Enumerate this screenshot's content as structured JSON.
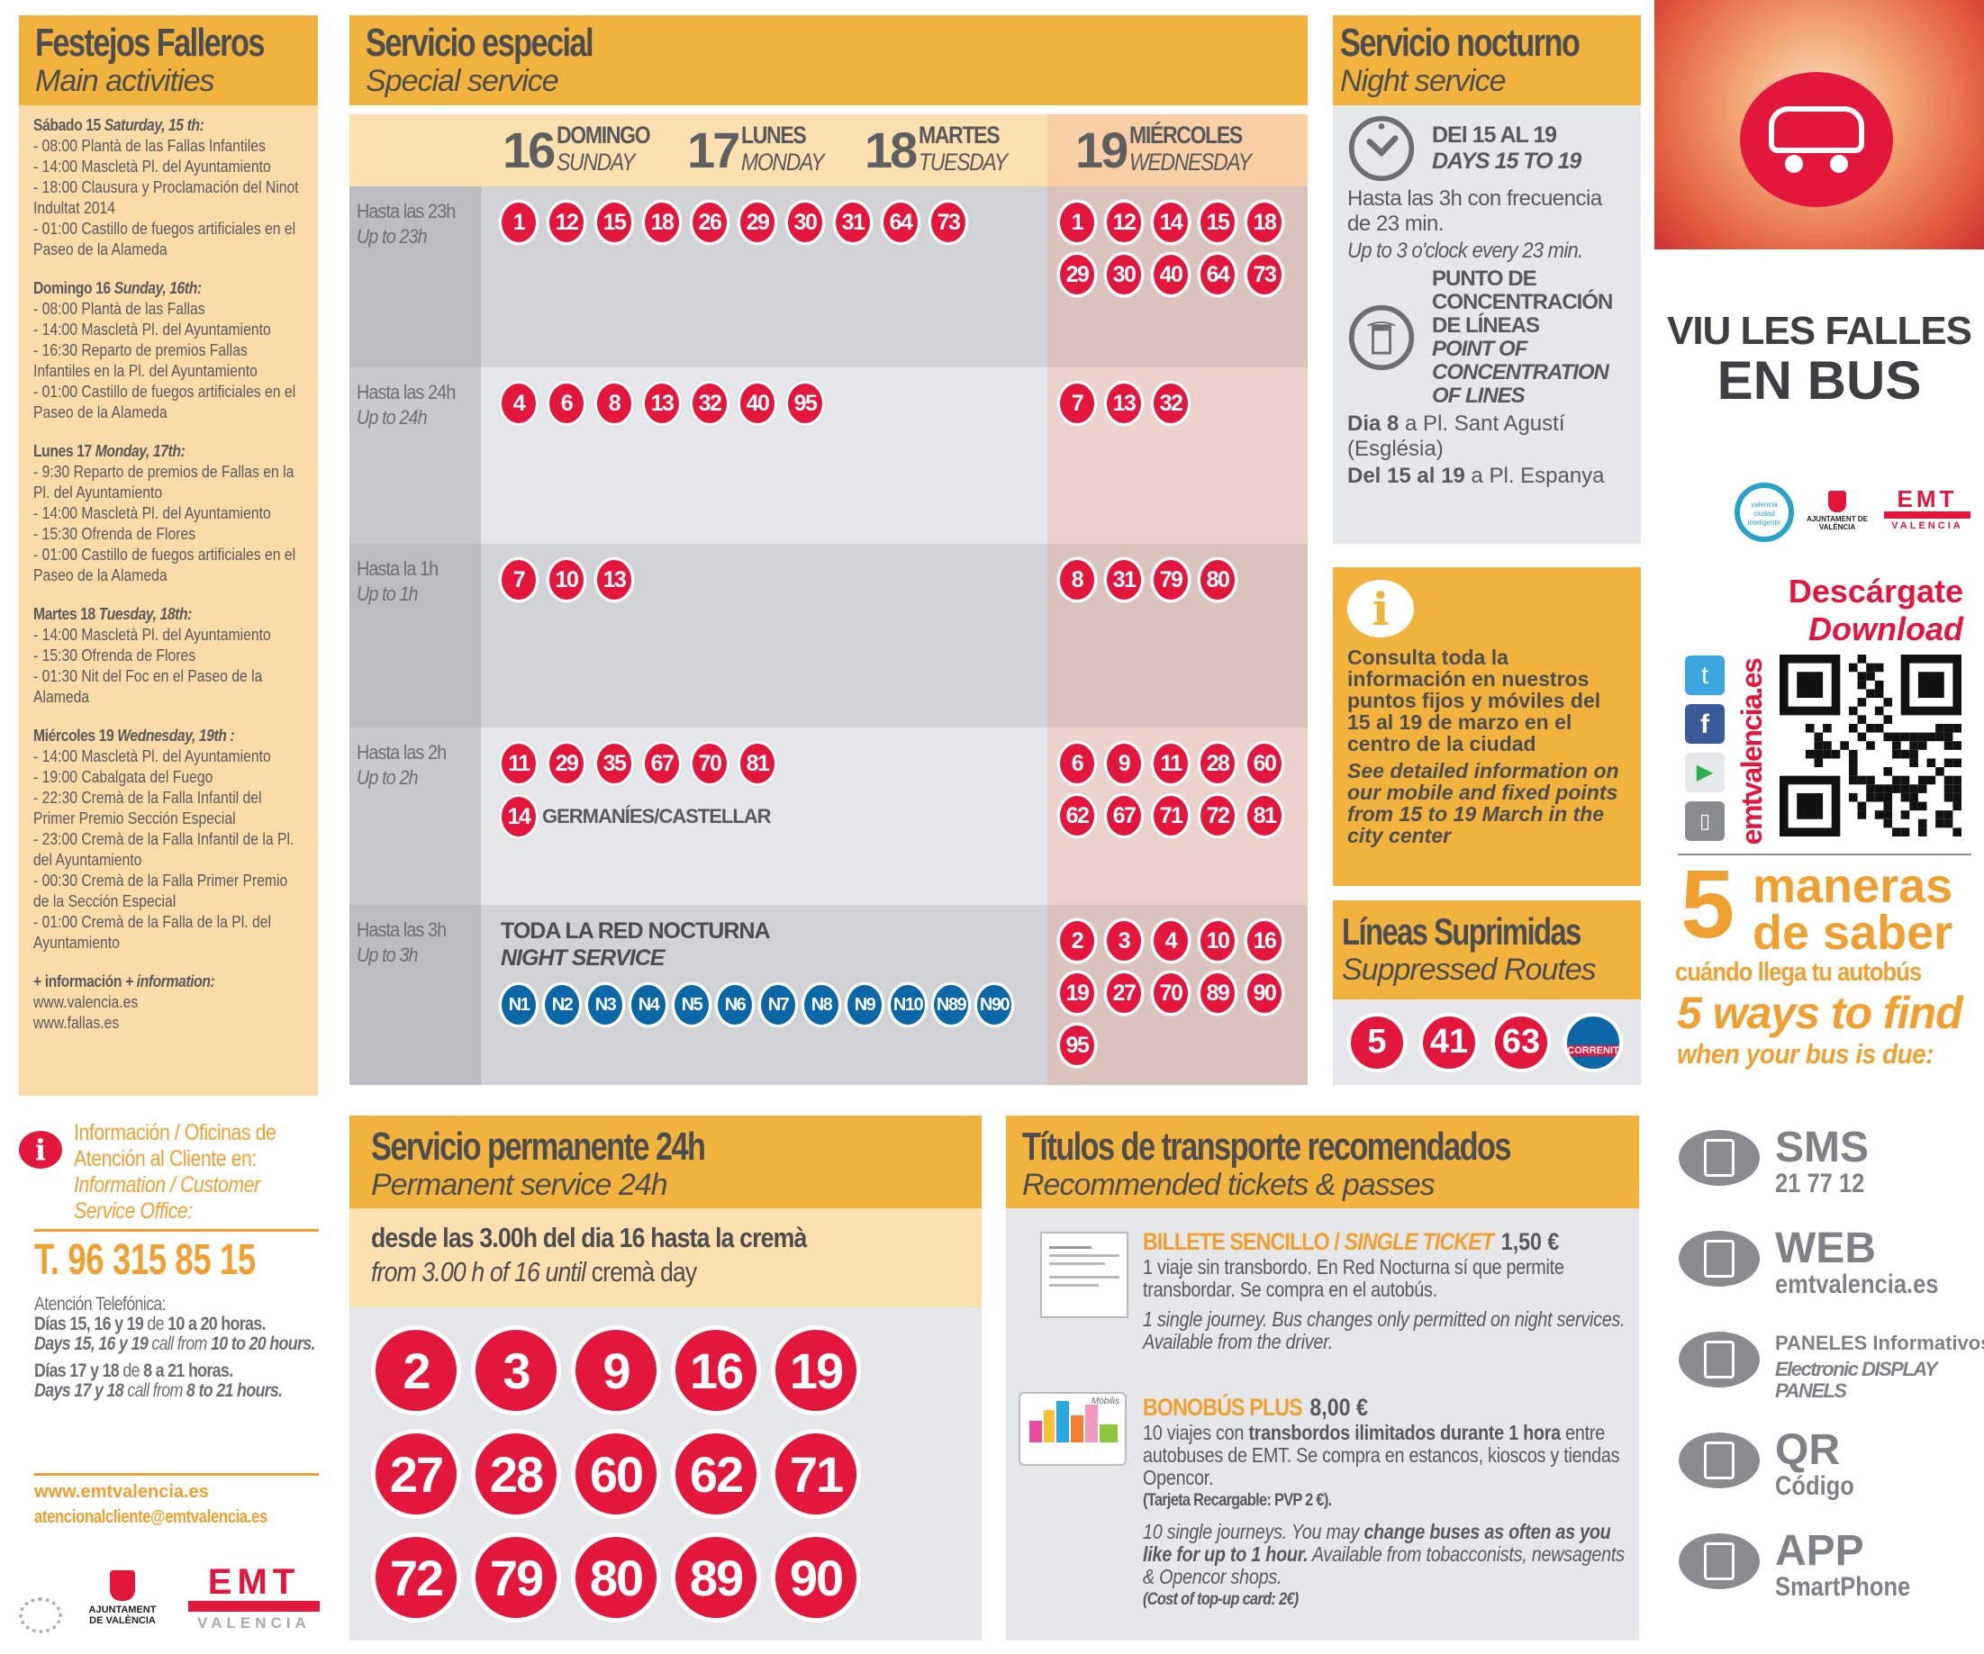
{
  "festejos": {
    "title": "Festejos Falleros",
    "subtitle": "Main activities",
    "days": [
      {
        "es": "Sábado 15",
        "en": "Saturday, 15 th:",
        "items": [
          "- 08:00  Plantà  de las Fallas Infantiles",
          "- 14:00 Mascletà Pl. del Ayuntamiento",
          "- 18:00  Clausura y Proclamación del Ninot Indultat 2014",
          "- 01:00  Castillo  de fuegos artificiales en el Paseo de la Alameda"
        ]
      },
      {
        "es": "Domingo 16",
        "en": "Sunday, 16th:",
        "items": [
          "- 08:00 Plantà  de las Fallas",
          "- 14:00 Mascletà Pl. del Ayuntamiento",
          "- 16:30 Reparto de premios Fallas Infantiles en la Pl. del Ayuntamiento",
          "- 01:00 Castillo de fuegos artificiales en el Paseo de la Alameda"
        ]
      },
      {
        "es": "Lunes 17",
        "en": "Monday, 17th:",
        "items": [
          "- 9:30 Reparto de premios de Fallas en la Pl. del Ayuntamiento",
          "- 14:00 Mascletà Pl. del Ayuntamiento",
          "- 15:30 Ofrenda de Flores",
          "- 01:00 Castillo de fuegos artificiales en el Paseo de la Alameda"
        ]
      },
      {
        "es": "Martes 18",
        "en": "Tuesday, 18th:",
        "items": [
          "- 14:00 Mascletà Pl. del Ayuntamiento",
          "- 15:30 Ofrenda de Flores",
          "- 01:30 Nit del Foc en el Paseo de la Alameda"
        ]
      },
      {
        "es": "Miércoles 19",
        "en": "Wednesday, 19th :",
        "items": [
          "- 14:00 Mascletà Pl. del Ayuntamiento",
          "- 19:00 Cabalgata del Fuego",
          "- 22:30 Cremà de la Falla Infantil del Primer Premio Sección Especial",
          "- 23:00 Cremà de la Falla Infantil de la Pl. del Ayuntamiento",
          "- 00:30 Cremà de la Falla Primer Premio de la Sección Especial",
          "- 01:00 Cremà  de la Falla de la Pl. del Ayuntamiento"
        ]
      }
    ],
    "more_es": "+ información",
    "more_en": "+ information:",
    "links": [
      "www.valencia.es",
      "www.fallas.es"
    ]
  },
  "special": {
    "title": "Servicio especial",
    "subtitle": "Special service",
    "days": [
      {
        "num": "16",
        "es": "DOMINGO",
        "en": "SUNDAY"
      },
      {
        "num": "17",
        "es": "LUNES",
        "en": "MONDAY"
      },
      {
        "num": "18",
        "es": "MARTES",
        "en": "TUESDAY"
      },
      {
        "num": "19",
        "es": "MIÉRCOLES",
        "en": "WEDNESDAY"
      }
    ],
    "rows": [
      {
        "es": "Hasta las 23h",
        "en": "Up to 23h",
        "regular": [
          "1",
          "12",
          "15",
          "18",
          "26",
          "29",
          "30",
          "31",
          "64",
          "73"
        ],
        "wednesday": [
          "1",
          "12",
          "14",
          "15",
          "18",
          "29",
          "30",
          "40",
          "64",
          "73"
        ]
      },
      {
        "es": "Hasta las 24h",
        "en": "Up to 24h",
        "regular": [
          "4",
          "6",
          "8",
          "13",
          "32",
          "40",
          "95"
        ],
        "wednesday": [
          "7",
          "13",
          "32"
        ]
      },
      {
        "es": "Hasta la 1h",
        "en": "Up to 1h",
        "regular": [
          "7",
          "10",
          "13"
        ],
        "wednesday": [
          "8",
          "31",
          "79",
          "80"
        ]
      },
      {
        "es": "Hasta las 2h",
        "en": "Up to 2h",
        "regular": [
          "11",
          "29",
          "35",
          "67",
          "70",
          "81"
        ],
        "extra_line": "14",
        "extra_text": "GERMANÍES/CASTELLAR",
        "wednesday": [
          "6",
          "9",
          "11",
          "28",
          "60",
          "62",
          "67",
          "71",
          "72",
          "81"
        ]
      },
      {
        "es": "Hasta las 3h",
        "en": "Up to 3h",
        "night_es": "TODA LA RED NOCTURNA",
        "night_en": "NIGHT SERVICE",
        "night_lines": [
          "N1",
          "N2",
          "N3",
          "N4",
          "N5",
          "N6",
          "N7",
          "N8",
          "N9",
          "N10",
          "N89",
          "N90"
        ],
        "wednesday": [
          "2",
          "3",
          "4",
          "10",
          "16",
          "19",
          "27",
          "70",
          "89",
          "90",
          "95"
        ]
      }
    ]
  },
  "nocturno": {
    "title": "Servicio nocturno",
    "subtitle": "Night service",
    "dates_es": "DEl 15 AL 19",
    "dates_en": "DAYS 15 TO 19",
    "freq_es": "Hasta las 3h con frecuencia de 23 min.",
    "freq_en": "Up to 3 o'clock every 23 min.",
    "point_es": "PUNTO DE CONCENTRACIÓN DE LÍNEAS",
    "point_en": "POINT OF CONCENTRATION OF LINES",
    "loc1_b": "Dia 8",
    "loc1": " a Pl. Sant Agustí (Església)",
    "loc2_b": "Del 15 al 19",
    "loc2": " a Pl. Espanya"
  },
  "info_box": {
    "es": "Consulta toda la información en nuestros puntos fijos y móviles del 15 al 19 de marzo en el centro de la ciudad",
    "en": "See detailed information on our mobile and fixed points from 15 to 19 March in the city center"
  },
  "suppressed": {
    "title": "Líneas Suprimidas",
    "subtitle": "Suppressed Routes",
    "lines": [
      "5",
      "41",
      "63"
    ],
    "logo": "CORRENIT"
  },
  "contact": {
    "title_es": "Información / Oficinas de Atención al Cliente en:",
    "title_en": "Information / Customer Service Office:",
    "phone": "T. 96 315 85 15",
    "attention": "Atención Telefónica:",
    "h1_es_b": "Días 15, 16 y 19",
    "h1_es_m": " de ",
    "h1_es_b2": "10 a 20 horas.",
    "h1_en_b": "Days 15, 16 y 19",
    "h1_en_m": "  call from ",
    "h1_en_b2": "10 to 20 hours.",
    "h2_es_b": "Días 17 y 18",
    "h2_es_m": " de ",
    "h2_es_b2": "8 a 21 horas.",
    "h2_en_b": "Days 17 y 18",
    "h2_en_m": " call from ",
    "h2_en_b2": "8 to 21 hours.",
    "web": "www.emtvalencia.es",
    "email": "atencionalcliente@emtvalencia.es",
    "logo_recycled": "Papel Reciclado 100%",
    "logo_ajuntament": "AJUNTAMENT DE VALÈNCIA",
    "logo_emt": "EMT",
    "logo_emt_sub": "VALENCIA"
  },
  "permanent": {
    "title": "Servicio permanente 24h",
    "subtitle": "Permanent service 24h",
    "from_es": "desde las 3.00h del dia 16 hasta la cremà",
    "from_en_a": "from 3.00 h of 16 until",
    "from_en_b": " cremà day",
    "lines": [
      "2",
      "3",
      "9",
      "16",
      "19",
      "27",
      "28",
      "60",
      "62",
      "71",
      "72",
      "79",
      "80",
      "89",
      "90"
    ]
  },
  "tickets": {
    "title": "Títulos de transporte recomendados",
    "subtitle": "Recommended tickets & passes",
    "single": {
      "name_es": "BILLETE SENCILLO / ",
      "name_en": "SINGLE TICKET",
      "price": "1,50 €",
      "desc_es": "1 viaje sin transbordo. En Red Nocturna sí que permite transbordar. Se compra en el autobús.",
      "desc_en": "1 single journey. Bus changes only permitted on night services. Available from the driver."
    },
    "bonobus": {
      "name": "BONOBÚS PLUS",
      "price": "8,00 €",
      "es_a": "10 viajes con ",
      "es_b": "transbordos ilimitados durante 1 hora",
      "es_c": " entre autobuses de EMT. Se compra en estancos, kioscos y tiendas Opencor.",
      "es_note": "(Tarjeta Recargable: PVP 2 €).",
      "en_a": "10 single journeys. You may ",
      "en_b": "change buses as often as you like for up to 1 hour.",
      "en_c": " Available from tobacconists, newsagents & Opencor shops.",
      "en_note": "(Cost of top-up card: 2€)",
      "card_label": "Mòbilis"
    }
  },
  "promo": {
    "slogan1": "VIU LES FALLES",
    "slogan2": "EN BUS",
    "logo_vci": "valencia ciudad inteligente",
    "logo_ajuntament": "AJUNTAMENT DE VALÈNCIA",
    "logo_emt": "EMT",
    "logo_emt_sub": "VALENCIA",
    "download_es": "Descárgate",
    "download_en": "Download",
    "site": "emtvalencia.es",
    "stores": [
      "twitter-icon",
      "facebook-icon",
      "google-play-icon",
      "app-store-icon"
    ],
    "five": "5",
    "maneras": "maneras",
    "de_saber": "de saber",
    "cuando": "cuándo llega tu autobús",
    "ways": "5 ways to find",
    "when": "when your bus is due:",
    "methods": [
      {
        "icon": "sms-phone-icon",
        "big": "SMS",
        "small": "21 77 12"
      },
      {
        "icon": "web-monitor-icon",
        "big": "WEB",
        "small": "emtvalencia.es"
      },
      {
        "icon": "display-panel-icon",
        "big": "PANELES Informativos",
        "small": "Electronic DISPLAY PANELS"
      },
      {
        "icon": "qr-code-icon",
        "big": "QR",
        "small": "Código"
      },
      {
        "icon": "app-phone-icon",
        "big": "APP",
        "small": "SmartPhone"
      }
    ]
  },
  "colors": {
    "red": "#e3173e",
    "blue": "#0b67a5",
    "yellow": "#f1b33e",
    "orange": "#f0a030",
    "gray_text": "#58595b"
  }
}
